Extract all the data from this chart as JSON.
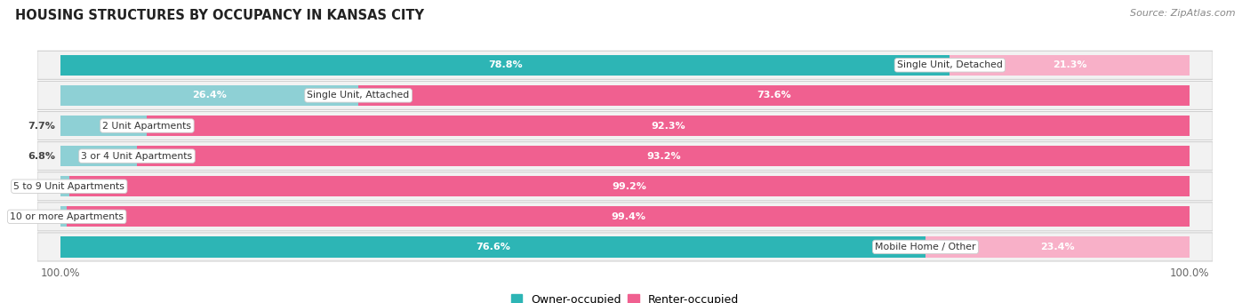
{
  "title": "Housing Structures by Occupancy in Kansas City",
  "source": "Source: ZipAtlas.com",
  "categories": [
    "Single Unit, Detached",
    "Single Unit, Attached",
    "2 Unit Apartments",
    "3 or 4 Unit Apartments",
    "5 to 9 Unit Apartments",
    "10 or more Apartments",
    "Mobile Home / Other"
  ],
  "owner_pct": [
    78.8,
    26.4,
    7.7,
    6.8,
    0.81,
    0.6,
    76.6
  ],
  "renter_pct": [
    21.3,
    73.6,
    92.3,
    93.2,
    99.2,
    99.4,
    23.4
  ],
  "owner_color_strong": "#2db5b5",
  "owner_color_light": "#8ed0d5",
  "renter_color_strong": "#f06090",
  "renter_color_light": "#f8b0c8",
  "row_bg": "#f2f2f2",
  "label_color": "#333333",
  "source_color": "#888888",
  "axis_label_color": "#666666",
  "figsize": [
    14.06,
    3.41
  ],
  "dpi": 100
}
